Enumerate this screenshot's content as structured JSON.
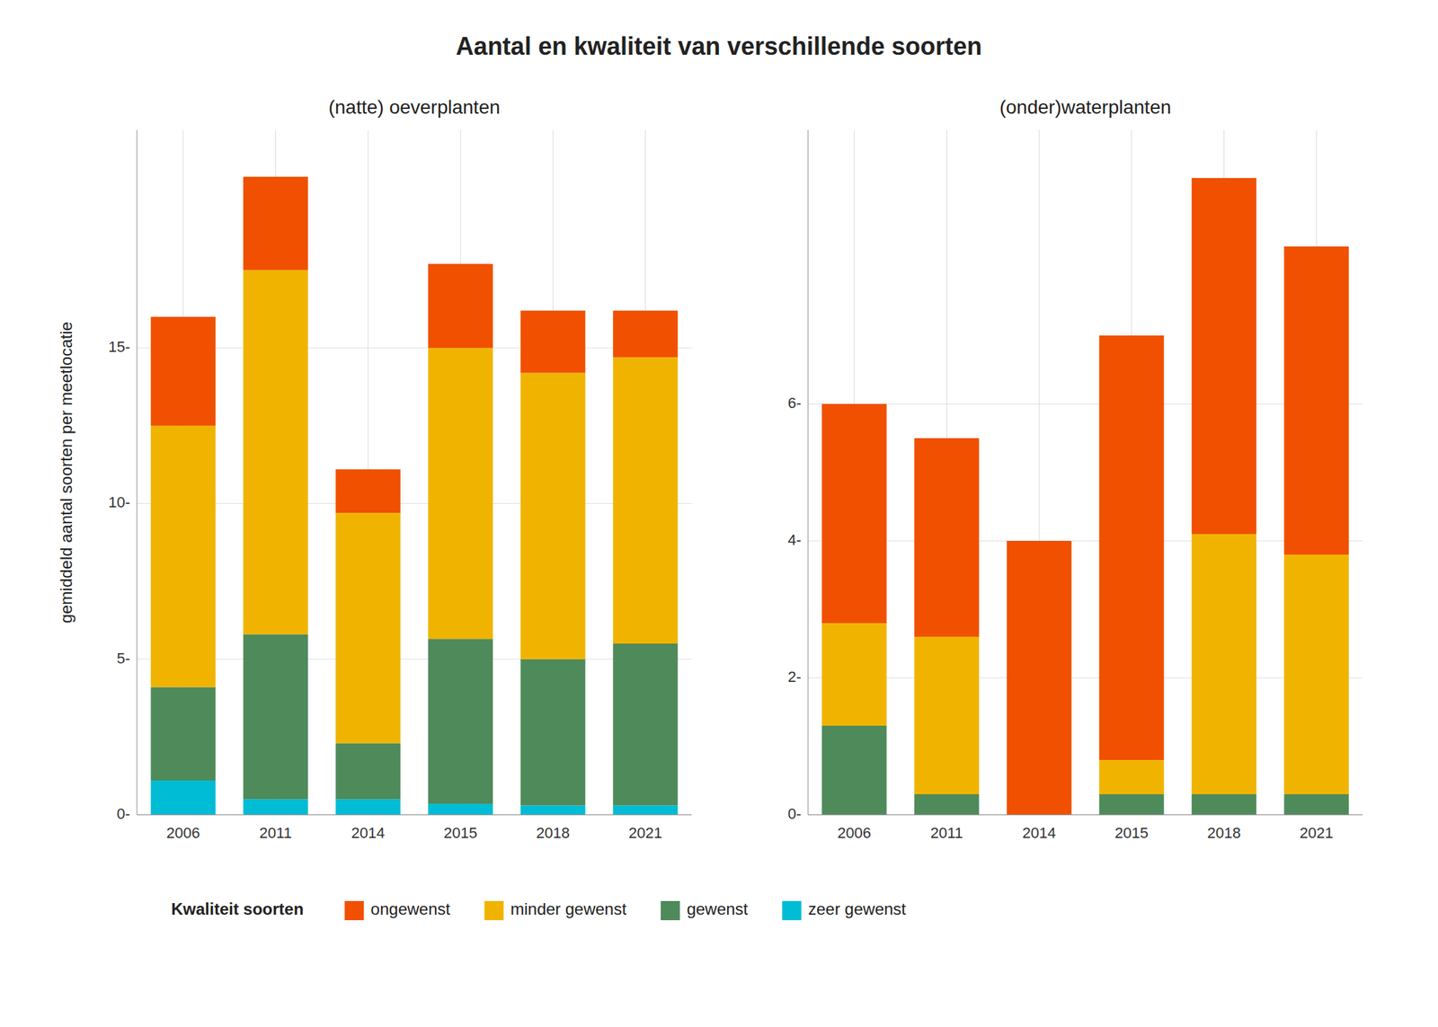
{
  "chart_data": [
    {
      "type": "bar",
      "stacked": true,
      "grid": true,
      "legend": "bottom",
      "title": "Aantal en kwaliteit van verschillende soorten",
      "subtitle": "(natte) oeverplanten",
      "ylabel": "gemiddeld aantal soorten per meetlocatie",
      "annotations": [
        {
          "text": "Kwaliteit soorten"
        }
      ],
      "categories": [
        "2006",
        "2011",
        "2014",
        "2015",
        "2018",
        "2021"
      ],
      "series": [
        {
          "name": "zeer gewenst",
          "color": "#00BCD4",
          "values": [
            1.1,
            0.5,
            0.5,
            0.35,
            0.3,
            0.3
          ]
        },
        {
          "name": "gewenst",
          "color": "#4E8A5A",
          "values": [
            3.0,
            5.3,
            1.8,
            5.3,
            4.7,
            5.2
          ]
        },
        {
          "name": "minder gewenst",
          "color": "#F0B400",
          "values": [
            8.4,
            11.7,
            7.4,
            9.35,
            9.2,
            9.2
          ]
        },
        {
          "name": "ongewenst",
          "color": "#F05000",
          "values": [
            3.5,
            3.0,
            1.4,
            2.7,
            2.0,
            1.5
          ]
        }
      ],
      "ylim": [
        0,
        22
      ],
      "yticks": [
        {
          "value": 0,
          "label": "0-"
        },
        {
          "value": 5,
          "label": "5-"
        },
        {
          "value": 10,
          "label": "10-"
        },
        {
          "value": 15,
          "label": "15-"
        }
      ]
    },
    {
      "type": "bar",
      "stacked": true,
      "grid": true,
      "subtitle": "(onder)waterplanten",
      "categories": [
        "2006",
        "2011",
        "2014",
        "2015",
        "2018",
        "2021"
      ],
      "series": [
        {
          "name": "zeer gewenst",
          "color": "#00BCD4",
          "values": [
            0.0,
            0.0,
            0.0,
            0.0,
            0.0,
            0.0
          ]
        },
        {
          "name": "gewenst",
          "color": "#4E8A5A",
          "values": [
            1.3,
            0.3,
            0.0,
            0.3,
            0.3,
            0.3
          ]
        },
        {
          "name": "minder gewenst",
          "color": "#F0B400",
          "values": [
            1.5,
            2.3,
            0.0,
            0.5,
            3.8,
            3.5
          ]
        },
        {
          "name": "ongewenst",
          "color": "#F05000",
          "values": [
            3.2,
            2.9,
            4.0,
            6.2,
            5.2,
            4.5
          ]
        }
      ],
      "ylim": [
        0,
        10
      ],
      "yticks": [
        {
          "value": 0,
          "label": "0-"
        },
        {
          "value": 2,
          "label": "2-"
        },
        {
          "value": 4,
          "label": "4-"
        },
        {
          "value": 6,
          "label": "6-"
        }
      ]
    }
  ]
}
